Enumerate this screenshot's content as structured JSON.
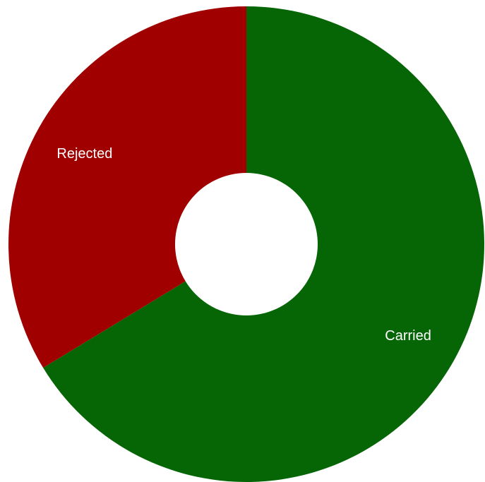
{
  "chart_data": {
    "type": "pie",
    "title": "",
    "categories": [
      "Carried",
      "Rejected"
    ],
    "values": [
      66.3,
      33.7
    ],
    "colors": [
      "#066606",
      "#a00000"
    ],
    "donut": true,
    "legend": "none",
    "labels": {
      "carried": "Carried",
      "rejected": "Rejected"
    }
  }
}
